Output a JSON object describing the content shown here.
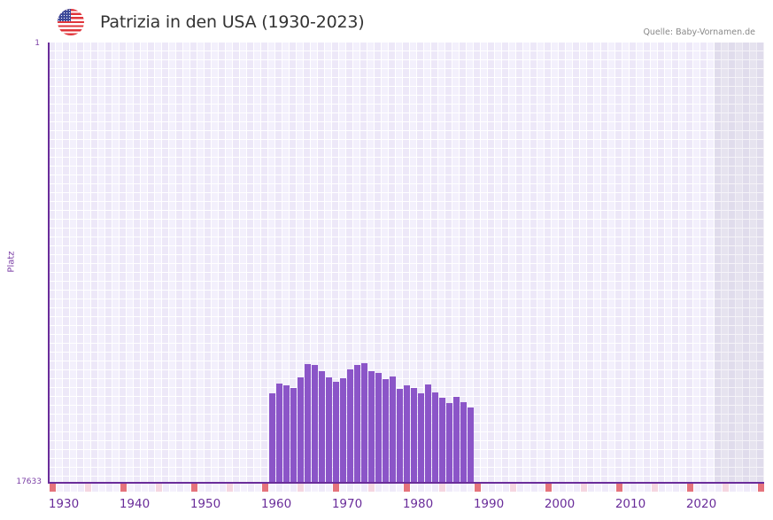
{
  "header": {
    "flag_icon": "us-flag-icon",
    "title": "Patrizia in den USA (1930-2023)",
    "source": "Quelle: Baby-Vornamen.de"
  },
  "axes": {
    "y_title": "Platz",
    "y_top_label": "1",
    "y_bottom_label": "17633",
    "x_labels": [
      "1930",
      "1940",
      "1950",
      "1960",
      "1970",
      "1980",
      "1990",
      "2000",
      "2010",
      "2020"
    ]
  },
  "colors": {
    "bar": "#8b55c8",
    "axis": "#6a2d9a",
    "marker_strong": "#e5737c",
    "marker_light": "#f5d6e0",
    "grid_a": "#ede8f8",
    "grid_b": "#f3f0fc",
    "future_shade": "#e0dcec"
  },
  "chart_data": {
    "type": "bar",
    "title": "Patrizia in den USA (1930-2023)",
    "xlabel": "",
    "ylabel": "Platz",
    "y_inverted": true,
    "ylim": [
      17633,
      1
    ],
    "xlim": [
      1928,
      2028
    ],
    "grid": true,
    "legend": null,
    "annotations": [
      "Quelle: Baby-Vornamen.de"
    ],
    "x": [
      1959,
      1960,
      1961,
      1962,
      1963,
      1964,
      1965,
      1966,
      1967,
      1968,
      1969,
      1970,
      1971,
      1972,
      1973,
      1974,
      1975,
      1976,
      1977,
      1978,
      1979,
      1980,
      1981,
      1982,
      1983,
      1984,
      1985,
      1986,
      1987
    ],
    "values": [
      14050,
      13660,
      13730,
      13840,
      13410,
      12880,
      12910,
      13160,
      13410,
      13590,
      13450,
      13090,
      12910,
      12840,
      13160,
      13230,
      13480,
      13370,
      13870,
      13730,
      13840,
      14050,
      13700,
      14020,
      14230,
      14440,
      14200,
      14410,
      14620
    ]
  }
}
